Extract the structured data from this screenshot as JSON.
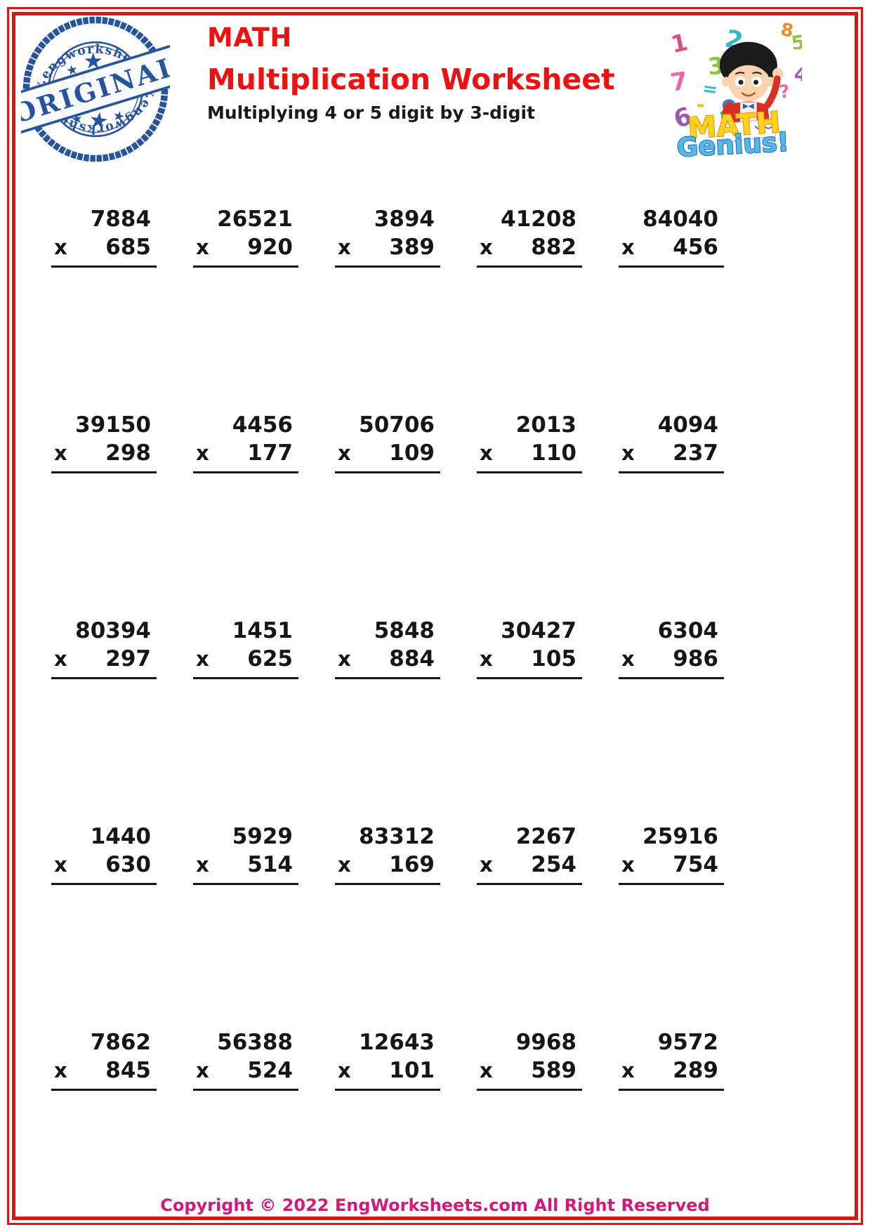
{
  "page": {
    "border_color": "#e11212",
    "background": "#ffffff"
  },
  "stamp": {
    "arc_text_top": "www.engworksheets.com",
    "arc_text_bottom": "www.engworksheets.com",
    "banner": "ORIGINAL",
    "color": "#27549e"
  },
  "header": {
    "title": "MATH",
    "subtitle": "Multiplication Worksheet",
    "description": "Multiplying 4 or 5 digit by 3-digit",
    "accent_color": "#ee1111"
  },
  "logo": {
    "line1": "MATH",
    "line2": "Genius!",
    "decorative_numbers": [
      "1",
      "2",
      "3",
      "7",
      "=",
      "9",
      "6",
      "-",
      "+",
      "8",
      "5",
      "4",
      "?"
    ],
    "decorative_colors": [
      "#d94f7e",
      "#2fb9c9",
      "#8bc63e",
      "#e96aa8",
      "#2fb9c9",
      "#3b7fd4",
      "#9b59b6",
      "#f5c518",
      "#e96aa8",
      "#f08c1e",
      "#8bc63e",
      "#9b59b6",
      "#e96aa8"
    ]
  },
  "operator": "x",
  "problems": [
    {
      "multiplicand": "7884",
      "multiplier": "685"
    },
    {
      "multiplicand": "26521",
      "multiplier": "920"
    },
    {
      "multiplicand": "3894",
      "multiplier": "389"
    },
    {
      "multiplicand": "41208",
      "multiplier": "882"
    },
    {
      "multiplicand": "84040",
      "multiplier": "456"
    },
    {
      "multiplicand": "39150",
      "multiplier": "298"
    },
    {
      "multiplicand": "4456",
      "multiplier": "177"
    },
    {
      "multiplicand": "50706",
      "multiplier": "109"
    },
    {
      "multiplicand": "2013",
      "multiplier": "110"
    },
    {
      "multiplicand": "4094",
      "multiplier": "237"
    },
    {
      "multiplicand": "80394",
      "multiplier": "297"
    },
    {
      "multiplicand": "1451",
      "multiplier": "625"
    },
    {
      "multiplicand": "5848",
      "multiplier": "884"
    },
    {
      "multiplicand": "30427",
      "multiplier": "105"
    },
    {
      "multiplicand": "6304",
      "multiplier": "986"
    },
    {
      "multiplicand": "1440",
      "multiplier": "630"
    },
    {
      "multiplicand": "5929",
      "multiplier": "514"
    },
    {
      "multiplicand": "83312",
      "multiplier": "169"
    },
    {
      "multiplicand": "2267",
      "multiplier": "254"
    },
    {
      "multiplicand": "25916",
      "multiplier": "754"
    },
    {
      "multiplicand": "7862",
      "multiplier": "845"
    },
    {
      "multiplicand": "56388",
      "multiplier": "524"
    },
    {
      "multiplicand": "12643",
      "multiplier": "101"
    },
    {
      "multiplicand": "9968",
      "multiplier": "589"
    },
    {
      "multiplicand": "9572",
      "multiplier": "289"
    }
  ],
  "footer": {
    "text": "Copyright © 2022 EngWorksheets.com All Right Reserved",
    "color": "#d6187e"
  }
}
